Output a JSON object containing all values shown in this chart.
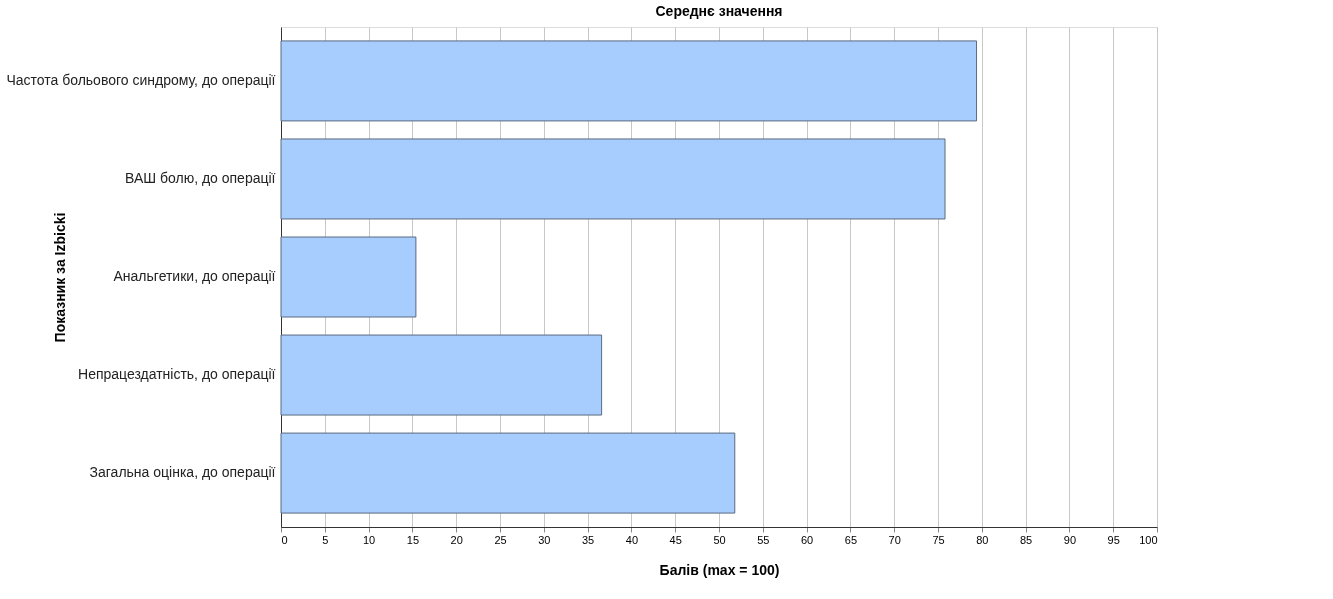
{
  "chart_data": {
    "type": "bar",
    "orientation": "horizontal",
    "title": "Середнє значення",
    "xlabel": "Балів (max = 100)",
    "ylabel": "Показник за Izbicki",
    "categories": [
      "Частота больового синдрому, до операції",
      "ВАШ болю, до операції",
      "Анальгетики, до операції",
      "Непрацездатність, до операції",
      "Загальна оцінка, до операції"
    ],
    "values": [
      79.4,
      75.8,
      15.4,
      36.6,
      51.8
    ],
    "color": "#a6cdfd",
    "xlim": [
      0,
      100
    ],
    "xticks": [
      0,
      5,
      10,
      15,
      20,
      25,
      30,
      35,
      40,
      45,
      50,
      55,
      60,
      65,
      70,
      75,
      80,
      85,
      90,
      95,
      100
    ],
    "grid": "x"
  }
}
